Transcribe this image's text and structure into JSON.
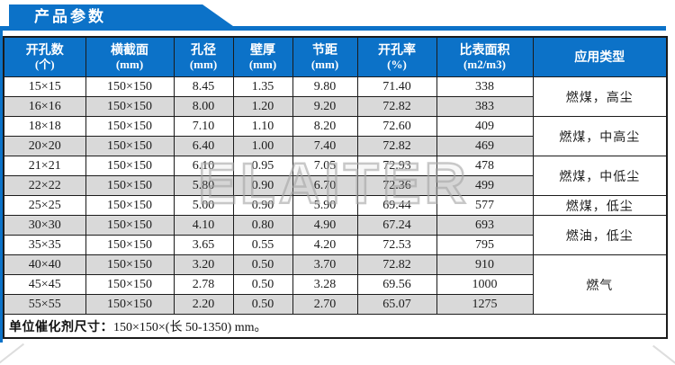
{
  "page": {
    "title": "产品参数",
    "watermark": "ELAITER"
  },
  "colors": {
    "banner_blue": "#0c72c8",
    "header_blue": "#0c72c8",
    "alt_row_grey": "#d9d9d9",
    "border": "#1b1b1b"
  },
  "table": {
    "columns": [
      {
        "label": "开孔数",
        "unit": "(个)"
      },
      {
        "label": "横截面",
        "unit": "(mm)"
      },
      {
        "label": "孔径",
        "unit": "(mm)"
      },
      {
        "label": "壁厚",
        "unit": "(mm)"
      },
      {
        "label": "节距",
        "unit": "(mm)"
      },
      {
        "label": "开孔率",
        "unit": "(%)"
      },
      {
        "label": "比表面积",
        "unit": "(m2/m3)"
      },
      {
        "label": "应用类型",
        "unit": ""
      }
    ],
    "rows": [
      [
        "15×15",
        "150×150",
        "8.45",
        "1.35",
        "9.80",
        "71.40",
        "338"
      ],
      [
        "16×16",
        "150×150",
        "8.00",
        "1.20",
        "9.20",
        "72.82",
        "383"
      ],
      [
        "18×18",
        "150×150",
        "7.10",
        "1.10",
        "8.20",
        "72.60",
        "409"
      ],
      [
        "20×20",
        "150×150",
        "6.40",
        "1.00",
        "7.40",
        "72.82",
        "469"
      ],
      [
        "21×21",
        "150×150",
        "6.10",
        "0.95",
        "7.05",
        "72.93",
        "478"
      ],
      [
        "22×22",
        "150×150",
        "5.80",
        "0.90",
        "6.70",
        "72.36",
        "499"
      ],
      [
        "25×25",
        "150×150",
        "5.00",
        "0.90",
        "5.90",
        "69.44",
        "577"
      ],
      [
        "30×30",
        "150×150",
        "4.10",
        "0.80",
        "4.90",
        "67.24",
        "693"
      ],
      [
        "35×35",
        "150×150",
        "3.65",
        "0.55",
        "4.20",
        "72.53",
        "795"
      ],
      [
        "40×40",
        "150×150",
        "3.20",
        "0.50",
        "3.70",
        "72.82",
        "910"
      ],
      [
        "45×45",
        "150×150",
        "2.78",
        "0.50",
        "3.28",
        "69.56",
        "1000"
      ],
      [
        "55×55",
        "150×150",
        "2.20",
        "0.50",
        "2.70",
        "65.07",
        "1275"
      ]
    ],
    "applications": [
      {
        "label": "燃煤，高尘",
        "rowspan": 2
      },
      {
        "label": "燃煤，中高尘",
        "rowspan": 2
      },
      {
        "label": "燃煤，中低尘",
        "rowspan": 2
      },
      {
        "label": "燃煤，低尘",
        "rowspan": 1
      },
      {
        "label": "燃油，低尘",
        "rowspan": 2
      },
      {
        "label": "燃气",
        "rowspan": 3
      }
    ],
    "footer": {
      "label": "单位催化剂尺寸：",
      "value": "150×150×(长 50-1350) mm。"
    }
  }
}
